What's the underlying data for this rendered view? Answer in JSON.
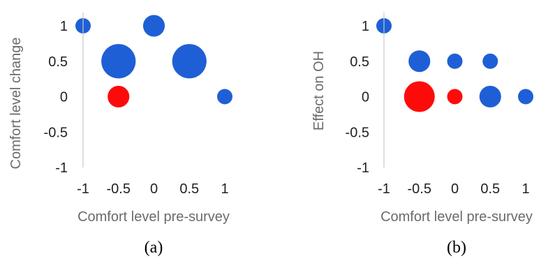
{
  "colors": {
    "positive": "#1f5fd6",
    "zero_or_negative": "#ff0a0a",
    "axis": "#c8c8c8"
  },
  "chart_data": [
    {
      "type": "scatter",
      "subtype": "bubble",
      "caption": "(a)",
      "xlabel": "Comfort level pre-survey",
      "ylabel": "Comfort level change",
      "xlim": [
        -1,
        1
      ],
      "ylim": [
        -1,
        1
      ],
      "xticks": [
        "-1",
        "-0.5",
        "0",
        "0.5",
        "1"
      ],
      "yticks": [
        "1",
        "0.5",
        "0",
        "-0.5",
        "-1"
      ],
      "grid": false,
      "points": [
        {
          "x": -1,
          "y": 1,
          "size": 1,
          "color": "#1f5fd6"
        },
        {
          "x": 0,
          "y": 1,
          "size": 2,
          "color": "#1f5fd6"
        },
        {
          "x": -0.5,
          "y": 0.5,
          "size": 5,
          "color": "#1f5fd6"
        },
        {
          "x": 0.5,
          "y": 0.5,
          "size": 5,
          "color": "#1f5fd6"
        },
        {
          "x": -0.5,
          "y": 0,
          "size": 2,
          "color": "#ff0a0a"
        },
        {
          "x": 1,
          "y": 0,
          "size": 1,
          "color": "#1f5fd6"
        }
      ]
    },
    {
      "type": "scatter",
      "subtype": "bubble",
      "caption": "(b)",
      "xlabel": "Comfort level pre-survey",
      "ylabel": "Effect on OH",
      "xlim": [
        -1,
        1
      ],
      "ylim": [
        -1,
        1
      ],
      "xticks": [
        "-1",
        "-0.5",
        "0",
        "0.5",
        "1"
      ],
      "yticks": [
        "1",
        "0.5",
        "0",
        "-0.5",
        "-1"
      ],
      "grid": false,
      "points": [
        {
          "x": -1,
          "y": 1,
          "size": 1,
          "color": "#1f5fd6"
        },
        {
          "x": -0.5,
          "y": 0.5,
          "size": 2,
          "color": "#1f5fd6"
        },
        {
          "x": 0,
          "y": 0.5,
          "size": 1,
          "color": "#1f5fd6"
        },
        {
          "x": 0.5,
          "y": 0.5,
          "size": 1,
          "color": "#1f5fd6"
        },
        {
          "x": -0.5,
          "y": 0,
          "size": 4,
          "color": "#ff0a0a"
        },
        {
          "x": 0,
          "y": 0,
          "size": 1,
          "color": "#ff0a0a"
        },
        {
          "x": 0.5,
          "y": 0,
          "size": 2,
          "color": "#1f5fd6"
        },
        {
          "x": 1,
          "y": 0,
          "size": 1,
          "color": "#1f5fd6"
        }
      ]
    }
  ]
}
